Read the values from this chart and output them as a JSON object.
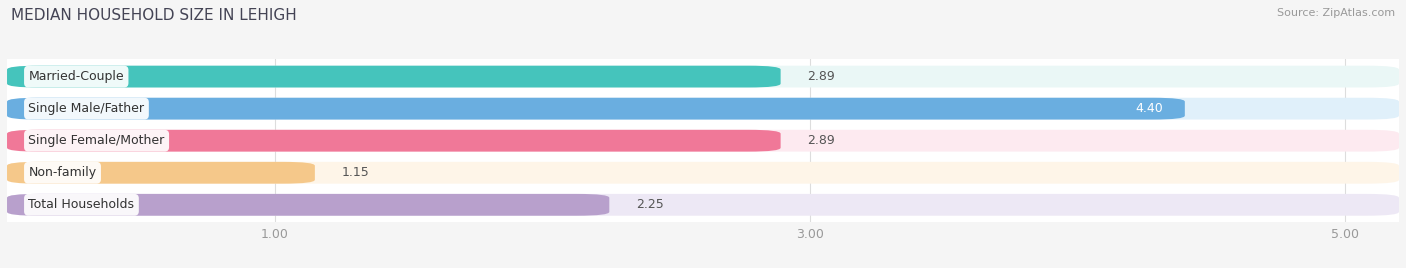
{
  "title": "MEDIAN HOUSEHOLD SIZE IN LEHIGH",
  "source": "Source: ZipAtlas.com",
  "categories": [
    "Married-Couple",
    "Single Male/Father",
    "Single Female/Mother",
    "Non-family",
    "Total Households"
  ],
  "values": [
    2.89,
    4.4,
    2.89,
    1.15,
    2.25
  ],
  "bar_colors": [
    "#45c4bc",
    "#6aaee0",
    "#f07898",
    "#f5c88a",
    "#b8a0cc"
  ],
  "bar_bg_colors": [
    "#eaf7f6",
    "#e0f0fa",
    "#fdeaf0",
    "#fef5e8",
    "#ede8f5"
  ],
  "xlim_left": 0.0,
  "xlim_right": 5.2,
  "data_min": 0.0,
  "xticks": [
    1.0,
    3.0,
    5.0
  ],
  "tick_fontsize": 9,
  "title_fontsize": 11,
  "value_fontsize": 9,
  "label_fontsize": 9,
  "bar_height": 0.68,
  "bar_gap": 0.32,
  "background_color": "#ffffff",
  "fig_bg_color": "#f5f5f5"
}
